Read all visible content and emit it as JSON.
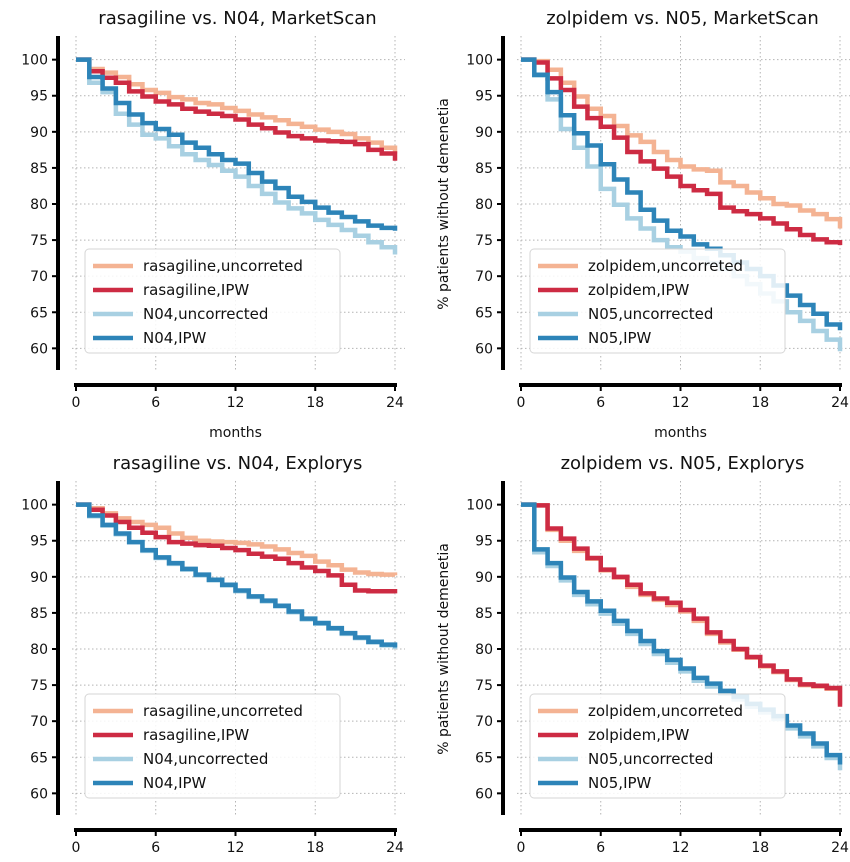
{
  "figure": {
    "colors": {
      "treat_uncorrected": "#f4b393",
      "treat_ipw": "#cd2b43",
      "ctrl_uncorrected": "#a8d0e2",
      "ctrl_ipw": "#2d84b8"
    }
  },
  "chart_data": [
    {
      "type": "line",
      "title": "rasagiline vs. N04, MarketScan",
      "xlabel": "months",
      "ylabel": "",
      "xlim": [
        0,
        24
      ],
      "ylim": [
        57,
        103
      ],
      "xticks": [
        0,
        6,
        12,
        18,
        24
      ],
      "yticks": [
        60,
        65,
        70,
        75,
        80,
        85,
        90,
        95,
        100
      ],
      "grid": true,
      "step": true,
      "legend": "lower-left",
      "series": [
        {
          "name": "rasagiline,uncorreted",
          "color": "#f4b393",
          "x": [
            0,
            1,
            2,
            3,
            4,
            5,
            6,
            7,
            8,
            9,
            10,
            11,
            12,
            13,
            14,
            15,
            16,
            17,
            18,
            19,
            20,
            21,
            22,
            23,
            24
          ],
          "y": [
            100,
            98.7,
            98.2,
            97.6,
            96.6,
            95.8,
            95.4,
            94.8,
            94.5,
            94.0,
            93.8,
            93.3,
            92.9,
            92.4,
            92.0,
            91.6,
            91.1,
            90.7,
            90.3,
            90.0,
            89.7,
            89.1,
            88.5,
            87.8,
            87.0
          ]
        },
        {
          "name": "rasagiline,IPW",
          "color": "#cd2b43",
          "x": [
            0,
            1,
            2,
            3,
            4,
            5,
            6,
            7,
            8,
            9,
            10,
            11,
            12,
            13,
            14,
            15,
            16,
            17,
            18,
            19,
            20,
            21,
            22,
            23,
            24
          ],
          "y": [
            100,
            98.4,
            97.5,
            96.8,
            95.6,
            94.9,
            94.2,
            93.8,
            93.2,
            92.8,
            92.5,
            92.2,
            91.7,
            91.0,
            90.5,
            89.9,
            89.4,
            89.1,
            88.8,
            88.7,
            88.6,
            88.3,
            87.5,
            87.0,
            86.0
          ]
        },
        {
          "name": "N04,uncorrected",
          "color": "#a8d0e2",
          "x": [
            0,
            1,
            2,
            3,
            4,
            5,
            6,
            7,
            8,
            9,
            10,
            11,
            12,
            13,
            14,
            15,
            16,
            17,
            18,
            19,
            20,
            21,
            22,
            23,
            24
          ],
          "y": [
            100,
            96.8,
            95.5,
            92.5,
            91.0,
            89.6,
            89.1,
            88.0,
            86.9,
            86.1,
            85.4,
            84.6,
            83.8,
            82.5,
            81.4,
            80.2,
            79.4,
            78.7,
            77.8,
            77.1,
            76.4,
            75.6,
            74.7,
            74.0,
            73.0
          ]
        },
        {
          "name": "N04,IPW",
          "color": "#2d84b8",
          "x": [
            0,
            1,
            2,
            3,
            4,
            5,
            6,
            7,
            8,
            9,
            10,
            11,
            12,
            13,
            14,
            15,
            16,
            17,
            18,
            19,
            20,
            21,
            22,
            23,
            24
          ],
          "y": [
            100,
            97.6,
            96.0,
            94.0,
            92.4,
            91.2,
            90.4,
            89.6,
            88.5,
            87.8,
            86.9,
            86.1,
            85.6,
            84.3,
            83.1,
            82.2,
            81.0,
            80.3,
            79.5,
            78.8,
            78.2,
            77.6,
            77.0,
            76.7,
            76.3
          ]
        }
      ]
    },
    {
      "type": "line",
      "title": "zolpidem vs. N05, MarketScan",
      "xlabel": "months",
      "ylabel": "% patients without demenetia",
      "xlim": [
        0,
        24
      ],
      "ylim": [
        57,
        103
      ],
      "xticks": [
        0,
        6,
        12,
        18,
        24
      ],
      "yticks": [
        60,
        65,
        70,
        75,
        80,
        85,
        90,
        95,
        100
      ],
      "grid": true,
      "step": true,
      "legend": "lower-left",
      "series": [
        {
          "name": "zolpidem,uncorreted",
          "color": "#f4b393",
          "x": [
            0,
            1,
            2,
            3,
            4,
            5,
            6,
            7,
            8,
            9,
            10,
            11,
            12,
            13,
            14,
            15,
            16,
            17,
            18,
            19,
            20,
            21,
            22,
            23,
            24
          ],
          "y": [
            100,
            99.8,
            98.6,
            96.8,
            94.9,
            93.2,
            92.2,
            90.8,
            89.5,
            88.6,
            87.2,
            86.1,
            85.2,
            84.8,
            84.6,
            83.0,
            82.5,
            81.6,
            80.8,
            80.0,
            79.8,
            79.1,
            78.6,
            77.9,
            76.6
          ]
        },
        {
          "name": "zolpidem,IPW",
          "color": "#cd2b43",
          "x": [
            0,
            1,
            2,
            3,
            4,
            5,
            6,
            7,
            8,
            9,
            10,
            11,
            12,
            13,
            14,
            15,
            16,
            17,
            18,
            19,
            20,
            21,
            22,
            23,
            24
          ],
          "y": [
            100,
            99.6,
            97.4,
            95.8,
            93.5,
            91.9,
            90.7,
            89.2,
            87.2,
            85.9,
            84.9,
            83.8,
            82.5,
            81.9,
            81.4,
            79.5,
            79.0,
            78.6,
            78.0,
            77.3,
            76.5,
            75.7,
            75.1,
            74.7,
            74.3
          ]
        },
        {
          "name": "N05,uncorrected",
          "color": "#a8d0e2",
          "x": [
            0,
            1,
            2,
            3,
            4,
            5,
            6,
            7,
            8,
            9,
            10,
            11,
            12,
            13,
            14,
            15,
            16,
            17,
            18,
            19,
            20,
            21,
            22,
            23,
            24
          ],
          "y": [
            100,
            97.8,
            94.5,
            90.4,
            87.8,
            85.2,
            82.1,
            79.9,
            78.0,
            76.6,
            75.0,
            74.0,
            73.4,
            72.5,
            71.8,
            71.0,
            70.0,
            68.9,
            67.6,
            66.5,
            65.0,
            63.8,
            62.4,
            61.2,
            59.6
          ]
        },
        {
          "name": "N05,IPW",
          "color": "#2d84b8",
          "x": [
            0,
            1,
            2,
            3,
            4,
            5,
            6,
            7,
            8,
            9,
            10,
            11,
            12,
            13,
            14,
            15,
            16,
            17,
            18,
            19,
            20,
            21,
            22,
            23,
            24
          ],
          "y": [
            100,
            97.9,
            95.5,
            92.3,
            89.8,
            88.1,
            85.5,
            83.4,
            81.6,
            79.2,
            77.7,
            76.3,
            75.5,
            74.4,
            73.8,
            72.9,
            71.9,
            71.0,
            70.0,
            68.7,
            67.3,
            66.0,
            64.8,
            63.3,
            62.5
          ]
        }
      ]
    },
    {
      "type": "line",
      "title": "rasagiline vs. N04, Explorys",
      "xlabel": "",
      "ylabel": "",
      "xlim": [
        0,
        24
      ],
      "ylim": [
        57,
        103
      ],
      "xticks": [
        0,
        6,
        12,
        18,
        24
      ],
      "yticks": [
        60,
        65,
        70,
        75,
        80,
        85,
        90,
        95,
        100
      ],
      "grid": true,
      "step": true,
      "legend": "lower-left",
      "series": [
        {
          "name": "rasagiline,uncorreted",
          "color": "#f4b393",
          "x": [
            0,
            1,
            2,
            3,
            4,
            5,
            6,
            7,
            8,
            9,
            10,
            11,
            12,
            13,
            14,
            15,
            16,
            17,
            18,
            19,
            20,
            21,
            22,
            23,
            24
          ],
          "y": [
            100,
            99.5,
            98.8,
            98.1,
            97.6,
            97.2,
            96.8,
            96.0,
            95.4,
            95.0,
            94.9,
            94.8,
            94.7,
            94.5,
            94.2,
            93.8,
            93.3,
            92.9,
            92.1,
            91.6,
            91.0,
            90.6,
            90.4,
            90.3,
            90.2
          ]
        },
        {
          "name": "rasagiline,IPW",
          "color": "#cd2b43",
          "x": [
            0,
            1,
            2,
            3,
            4,
            5,
            6,
            7,
            8,
            9,
            10,
            11,
            12,
            13,
            14,
            15,
            16,
            17,
            18,
            19,
            20,
            21,
            22,
            23,
            24
          ],
          "y": [
            100,
            99.3,
            98.5,
            97.6,
            96.8,
            96.1,
            95.5,
            94.8,
            94.6,
            94.4,
            94.3,
            94.0,
            93.7,
            93.2,
            92.8,
            92.5,
            91.9,
            91.3,
            90.8,
            90.2,
            88.9,
            88.1,
            88.0,
            88.0,
            87.7
          ]
        },
        {
          "name": "N04,uncorrected",
          "color": "#a8d0e2",
          "x": [
            0,
            1,
            2,
            3,
            4,
            5,
            6,
            7,
            8,
            9,
            10,
            11,
            12,
            13,
            14,
            15,
            16,
            17,
            18,
            19,
            20,
            21,
            22,
            23,
            24
          ],
          "y": [
            100,
            98.4,
            97.1,
            95.9,
            94.8,
            93.6,
            92.6,
            91.8,
            91.0,
            90.2,
            89.5,
            88.8,
            88.0,
            87.2,
            86.6,
            85.9,
            85.1,
            84.1,
            83.5,
            82.8,
            82.1,
            81.5,
            80.9,
            80.5,
            80.0
          ]
        },
        {
          "name": "N04,IPW",
          "color": "#2d84b8",
          "x": [
            0,
            1,
            2,
            3,
            4,
            5,
            6,
            7,
            8,
            9,
            10,
            11,
            12,
            13,
            14,
            15,
            16,
            17,
            18,
            19,
            20,
            21,
            22,
            23,
            24
          ],
          "y": [
            100,
            98.5,
            97.2,
            96.0,
            94.8,
            93.7,
            92.7,
            91.9,
            91.1,
            90.3,
            89.6,
            88.9,
            88.1,
            87.3,
            86.7,
            86.0,
            85.2,
            84.2,
            83.6,
            82.9,
            82.2,
            81.6,
            81.0,
            80.6,
            80.2
          ]
        }
      ]
    },
    {
      "type": "line",
      "title": "zolpidem vs. N05, Explorys",
      "xlabel": "",
      "ylabel": "% patients without demenetia",
      "xlim": [
        0,
        24
      ],
      "ylim": [
        57,
        103
      ],
      "xticks": [
        0,
        6,
        12,
        18,
        24
      ],
      "yticks": [
        60,
        65,
        70,
        75,
        80,
        85,
        90,
        95,
        100
      ],
      "grid": true,
      "step": true,
      "legend": "lower-left",
      "series": [
        {
          "name": "zolpidem,uncorreted",
          "color": "#f4b393",
          "x": [
            0,
            1,
            2,
            3,
            4,
            5,
            6,
            7,
            8,
            9,
            10,
            11,
            12,
            13,
            14,
            15,
            16,
            17,
            18,
            19,
            20,
            21,
            22,
            23,
            24
          ],
          "y": [
            100,
            99.9,
            96.5,
            95.0,
            93.6,
            92.5,
            90.9,
            89.9,
            88.6,
            87.5,
            86.8,
            86.1,
            85.2,
            83.9,
            82.1,
            80.9,
            79.9,
            78.8,
            77.6,
            76.8,
            75.7,
            75.0,
            74.8,
            74.5,
            72.3
          ]
        },
        {
          "name": "zolpidem,IPW",
          "color": "#cd2b43",
          "x": [
            0,
            1,
            2,
            3,
            4,
            5,
            6,
            7,
            8,
            9,
            10,
            11,
            12,
            13,
            14,
            15,
            16,
            17,
            18,
            19,
            20,
            21,
            22,
            23,
            24
          ],
          "y": [
            100,
            99.9,
            96.7,
            95.3,
            93.9,
            92.6,
            91.0,
            90.0,
            88.9,
            87.7,
            87.0,
            86.4,
            85.4,
            84.2,
            82.3,
            81.1,
            80.0,
            78.9,
            77.7,
            76.9,
            75.8,
            75.1,
            74.9,
            74.6,
            72.0
          ]
        },
        {
          "name": "N05,uncorrected",
          "color": "#a8d0e2",
          "x": [
            0,
            1,
            2,
            3,
            4,
            5,
            6,
            7,
            8,
            9,
            10,
            11,
            12,
            13,
            14,
            15,
            16,
            17,
            18,
            19,
            20,
            21,
            22,
            23,
            24
          ],
          "y": [
            100,
            93.4,
            91.5,
            89.5,
            87.5,
            86.2,
            84.9,
            83.5,
            82.1,
            80.7,
            79.3,
            78.1,
            76.9,
            75.6,
            74.8,
            73.8,
            73.0,
            72.0,
            71.2,
            70.3,
            69.0,
            67.9,
            66.5,
            64.9,
            63.2
          ]
        },
        {
          "name": "N05,IPW",
          "color": "#2d84b8",
          "x": [
            0,
            1,
            2,
            3,
            4,
            5,
            6,
            7,
            8,
            9,
            10,
            11,
            12,
            13,
            14,
            15,
            16,
            17,
            18,
            19,
            20,
            21,
            22,
            23,
            24
          ],
          "y": [
            100,
            93.8,
            91.9,
            89.9,
            87.9,
            86.6,
            85.3,
            83.9,
            82.5,
            81.1,
            79.7,
            78.5,
            77.3,
            76.0,
            75.2,
            74.2,
            73.4,
            72.4,
            71.6,
            70.7,
            69.4,
            68.3,
            66.9,
            65.3,
            64.0
          ]
        }
      ]
    }
  ]
}
